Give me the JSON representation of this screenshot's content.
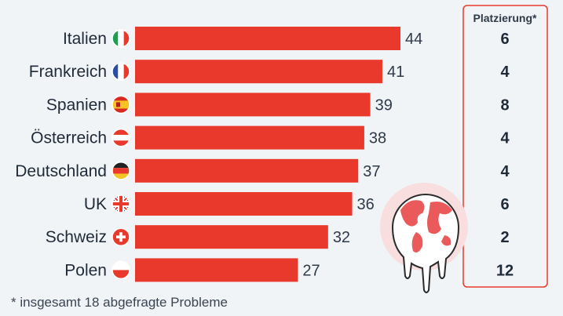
{
  "chart_data": {
    "type": "bar",
    "orientation": "horizontal",
    "categories": [
      "Italien",
      "Frankreich",
      "Spanien",
      "Österreich",
      "Deutschland",
      "UK",
      "Schweiz",
      "Polen"
    ],
    "values": [
      44,
      41,
      39,
      38,
      37,
      36,
      32,
      27
    ],
    "flags": [
      "italy-flag-icon",
      "france-flag-icon",
      "spain-flag-icon",
      "austria-flag-icon",
      "germany-flag-icon",
      "uk-flag-icon",
      "switzerland-flag-icon",
      "poland-flag-icon"
    ],
    "bar_color": "#e8392c",
    "ranking_header": "Platzierung*",
    "ranking": [
      6,
      4,
      8,
      4,
      4,
      6,
      2,
      12
    ],
    "ranking_border_color": "#e8392c",
    "xlim": [
      0,
      55
    ]
  },
  "footnote": "* insgesamt 18 abgefragte Probleme"
}
